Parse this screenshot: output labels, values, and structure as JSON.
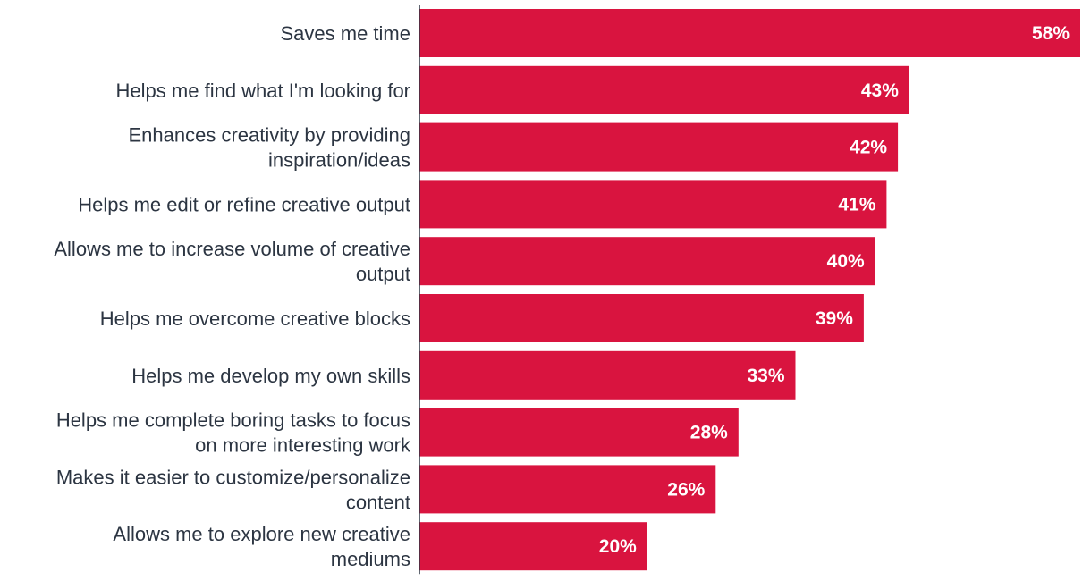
{
  "chart_data": {
    "type": "bar",
    "orientation": "horizontal",
    "categories": [
      "Saves me time",
      "Helps me find what I'm looking for",
      "Enhances creativity by providing inspiration/ideas",
      "Helps me edit or refine creative output",
      "Allows me to increase volume of creative output",
      "Helps me overcome creative blocks",
      "Helps me develop my own skills",
      "Helps me complete boring tasks to focus on more interesting work",
      "Makes it easier to customize/personalize content",
      "Allows me to explore new creative mediums"
    ],
    "category_lines": [
      [
        "Saves me time"
      ],
      [
        "Helps me find what I'm looking for"
      ],
      [
        "Enhances creativity by providing",
        "inspiration/ideas"
      ],
      [
        "Helps me edit or refine creative output"
      ],
      [
        "Allows me to increase volume of creative",
        "output"
      ],
      [
        "Helps me overcome creative blocks"
      ],
      [
        "Helps me develop my own skills"
      ],
      [
        "Helps me complete boring tasks to focus",
        "on more interesting work"
      ],
      [
        "Makes it easier to customize/personalize",
        "content"
      ],
      [
        "Allows me to explore new creative",
        "mediums"
      ]
    ],
    "values": [
      58,
      43,
      42,
      41,
      40,
      39,
      33,
      28,
      26,
      20
    ],
    "value_labels": [
      "58%",
      "43%",
      "42%",
      "41%",
      "40%",
      "39%",
      "33%",
      "28%",
      "26%",
      "20%"
    ],
    "unit": "%",
    "xlim": [
      0,
      58
    ],
    "bar_color": "#d9143f",
    "axis_color": "#2c3542",
    "grid": false,
    "legend": "none"
  }
}
